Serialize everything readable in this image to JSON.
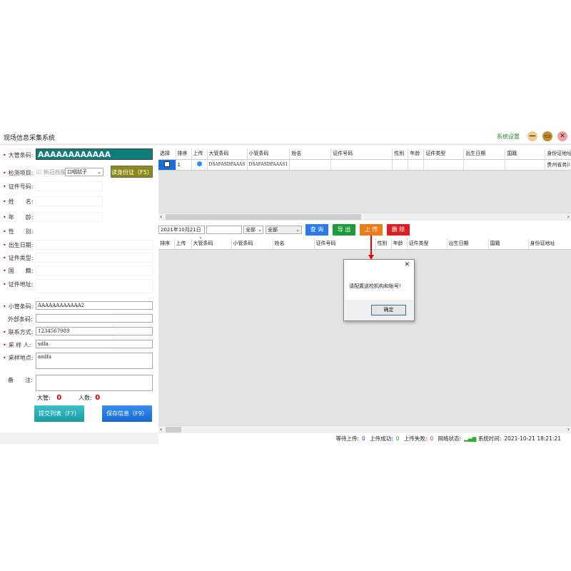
{
  "window": {
    "title": "现场信息采集系统",
    "settings": "系统设置",
    "min": "—",
    "max": "▭",
    "close": "✕"
  },
  "left": {
    "big_code_label": "大管条码:",
    "big_code": "AAAAAAAAAAAA",
    "test_item_label": "检测项目:",
    "test_checkbox_label": "新冠核酸",
    "sample_type": "口咽拭子",
    "read_id_button": "读身份证（F5）",
    "id_no_label": "证件号码:",
    "name_label": "姓　　名:",
    "age_label": "年　　龄:",
    "sex_label": "性　　别:",
    "birth_label": "出生日期:",
    "id_type_label": "证件类型:",
    "nation_label": "国　　籍:",
    "address_label": "证件地址:",
    "small_code_label": "小管条码:",
    "small_code": "AAAAAAAAAAAA2",
    "ext_code_label": "外部条码:",
    "ext_code": "",
    "contact_label": "联系方式:",
    "contact": "1234567989",
    "sampler_label": "采 样 人:",
    "sampler": "sdfa",
    "location_label": "采样地点:",
    "location": "asdfa",
    "note_label": "备　　注:",
    "note": "",
    "big_count_label": "大管:",
    "big_count": "0",
    "people_count_label": "人数:",
    "people_count": "0",
    "submit_button": "提交列表（F7）",
    "save_button": "保存信息（F9）"
  },
  "top_table": {
    "headers": [
      "选择",
      "排序",
      "上传",
      "大管条码",
      "小管条码",
      "姓名",
      "证件号码",
      "性别",
      "年龄",
      "证件类型",
      "出生日期",
      "国籍",
      "身份证地址"
    ],
    "rows": [
      {
        "order": "1",
        "big": "DSAFASDFAAAS",
        "small": "DSAFASDFAAAS1",
        "address": "贵州省务川"
      }
    ]
  },
  "toolbar": {
    "date": "2021年10月21日",
    "search": "",
    "filter1": "全部",
    "filter2": "全部",
    "query": "查 询",
    "export": "导 出",
    "upload": "上 传",
    "delete": "删 除"
  },
  "bottom_table": {
    "headers": [
      "排序",
      "上传",
      "大管条码",
      "小管条码",
      "姓名",
      "证件号码",
      "性别",
      "年龄",
      "证件类型",
      "出生日期",
      "国籍",
      "身份证地址"
    ]
  },
  "dialog": {
    "message": "请配置送检机构和账号!",
    "ok": "确定",
    "close": "✕"
  },
  "status": {
    "pending_label": "等待上传:",
    "pending": "0",
    "success_label": "上传成功:",
    "success": "0",
    "fail_label": "上传失败:",
    "fail": "0",
    "network_label": "网络状态:",
    "time_label": "系统时间:",
    "time": "2021-10-21 18:21:21"
  }
}
